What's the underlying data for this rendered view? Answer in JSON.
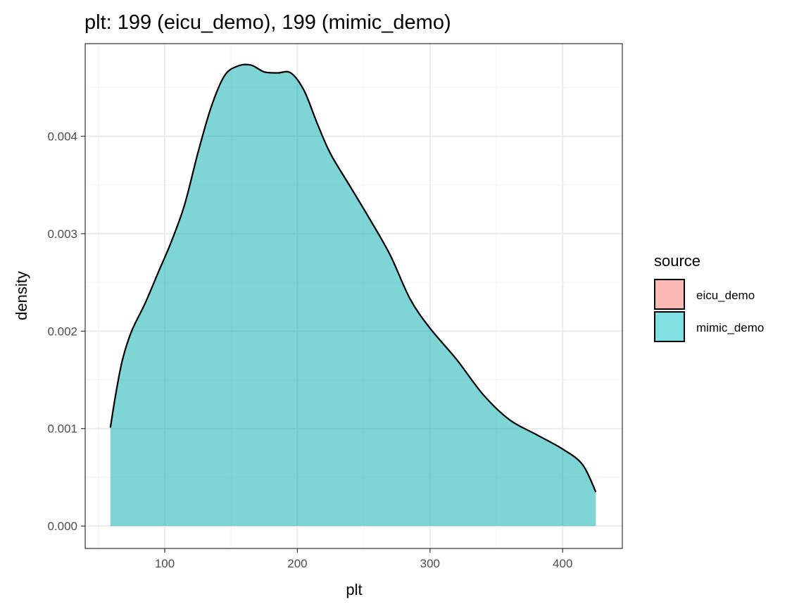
{
  "chart_data": {
    "type": "area",
    "title": "plt: 199 (eicu_demo), 199 (mimic_demo)",
    "xlabel": "plt",
    "ylabel": "density",
    "xlim": [
      40,
      445
    ],
    "ylim": [
      -0.00023,
      0.00495
    ],
    "x_ticks": [
      100,
      200,
      300,
      400
    ],
    "x_tick_labels": [
      "100",
      "200",
      "300",
      "400"
    ],
    "y_ticks": [
      0,
      0.001,
      0.002,
      0.003,
      0.004
    ],
    "y_tick_labels": [
      "0.000",
      "0.001",
      "0.002",
      "0.003",
      "0.004"
    ],
    "grid": true,
    "legend": {
      "title": "source",
      "position": "right",
      "entries": [
        {
          "label": "eicu_demo",
          "color": "#F8766D"
        },
        {
          "label": "mimic_demo",
          "color": "#00BFC4"
        }
      ]
    },
    "series": [
      {
        "name": "mimic_demo",
        "fill_color": "#00A9AD",
        "line_color": "#000000",
        "x": [
          59,
          63,
          68,
          75,
          85,
          95,
          105,
          115,
          125,
          135,
          145,
          155,
          165,
          175,
          185,
          195,
          205,
          215,
          225,
          240,
          255,
          270,
          285,
          300,
          320,
          340,
          360,
          380,
          400,
          415,
          425
        ],
        "y": [
          0.00101,
          0.00135,
          0.0017,
          0.002,
          0.00228,
          0.0026,
          0.00292,
          0.0033,
          0.00383,
          0.0043,
          0.00462,
          0.00472,
          0.00473,
          0.00466,
          0.00465,
          0.00465,
          0.00447,
          0.00413,
          0.00382,
          0.00348,
          0.00314,
          0.00278,
          0.00233,
          0.00203,
          0.00171,
          0.00135,
          0.00109,
          0.00094,
          0.00079,
          0.00063,
          0.00035
        ]
      }
    ]
  }
}
